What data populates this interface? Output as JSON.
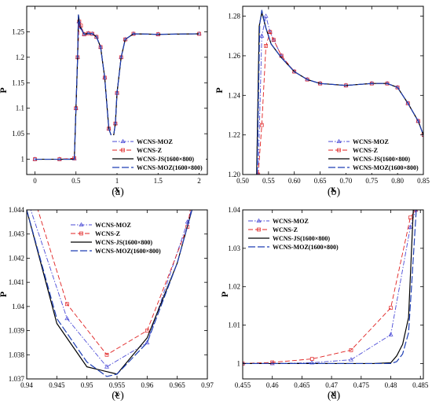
{
  "legend": {
    "items": [
      {
        "key": "moz",
        "label": "WCNS-MOZ"
      },
      {
        "key": "z",
        "label": "WCNS-Z"
      },
      {
        "key": "js",
        "label": "WCNS-JS(1600×800)"
      },
      {
        "key": "mozref",
        "label": "WCNS-MOZ(1600×800)"
      }
    ]
  },
  "colors": {
    "moz": "#4a4ad6",
    "z": "#e02020",
    "js": "#000000",
    "mozref": "#1e3fb4"
  },
  "chart_data": [
    {
      "id": "a",
      "type": "line",
      "panel_label": "(a)",
      "xlabel": "x",
      "ylabel": "P",
      "xlim": [
        -0.1,
        2.1
      ],
      "ylim": [
        0.97,
        1.3
      ],
      "xticks": [
        "0",
        "0.5",
        "1",
        "1.5",
        "2"
      ],
      "xtick_values": [
        0,
        0.5,
        1,
        1.5,
        2
      ],
      "yticks": [
        "1",
        "1.05",
        "1.1",
        "1.15",
        "1.2",
        "1.25"
      ],
      "ytick_values": [
        1,
        1.05,
        1.1,
        1.15,
        1.2,
        1.25
      ],
      "legend_position": "bottom-right",
      "series": [
        {
          "key": "moz",
          "x": [
            0,
            0.3,
            0.48,
            0.5,
            0.52,
            0.535,
            0.55,
            0.6,
            0.65,
            0.7,
            0.75,
            0.8,
            0.85,
            0.9,
            0.95,
            0.98,
            1.0,
            1.05,
            1.1,
            1.2,
            1.5,
            2.0
          ],
          "y": [
            1.0,
            1.0,
            1.001,
            1.1,
            1.2,
            1.27,
            1.258,
            1.245,
            1.247,
            1.246,
            1.24,
            1.22,
            1.16,
            1.06,
            1.037,
            1.07,
            1.13,
            1.2,
            1.235,
            1.246,
            1.245,
            1.246
          ]
        },
        {
          "key": "z",
          "x": [
            0,
            0.3,
            0.48,
            0.5,
            0.52,
            0.54,
            0.56,
            0.6,
            0.65,
            0.7,
            0.75,
            0.8,
            0.85,
            0.9,
            0.95,
            0.98,
            1.0,
            1.05,
            1.1,
            1.2,
            1.5,
            2.0
          ],
          "y": [
            1.0,
            1.0,
            1.002,
            1.1,
            1.2,
            1.27,
            1.262,
            1.245,
            1.247,
            1.246,
            1.24,
            1.22,
            1.16,
            1.06,
            1.038,
            1.07,
            1.13,
            1.2,
            1.235,
            1.246,
            1.245,
            1.246
          ]
        },
        {
          "key": "js",
          "x": [
            0,
            0.3,
            0.48,
            0.5,
            0.52,
            0.53,
            0.55,
            0.6,
            0.65,
            0.7,
            0.75,
            0.8,
            0.85,
            0.9,
            0.95,
            0.98,
            1.0,
            1.05,
            1.1,
            1.2,
            1.5,
            2.0
          ],
          "y": [
            1.0,
            1.0,
            1.0,
            1.1,
            1.2,
            1.283,
            1.26,
            1.245,
            1.247,
            1.246,
            1.24,
            1.22,
            1.16,
            1.06,
            1.037,
            1.07,
            1.13,
            1.2,
            1.235,
            1.246,
            1.245,
            1.246
          ]
        },
        {
          "key": "mozref",
          "x": [
            0,
            0.3,
            0.48,
            0.5,
            0.52,
            0.53,
            0.55,
            0.6,
            0.65,
            0.7,
            0.75,
            0.8,
            0.85,
            0.9,
            0.95,
            0.98,
            1.0,
            1.05,
            1.1,
            1.2,
            1.5,
            2.0
          ],
          "y": [
            1.0,
            1.0,
            1.0,
            1.1,
            1.2,
            1.283,
            1.26,
            1.245,
            1.247,
            1.246,
            1.24,
            1.22,
            1.16,
            1.06,
            1.037,
            1.07,
            1.13,
            1.2,
            1.235,
            1.246,
            1.245,
            1.246
          ]
        }
      ]
    },
    {
      "id": "b",
      "type": "line",
      "panel_label": "(b)",
      "xlabel": "x",
      "ylabel": "P",
      "xlim": [
        0.5,
        0.85
      ],
      "ylim": [
        1.2,
        1.285
      ],
      "xticks": [
        "0.50",
        "0.55",
        "0.60",
        "0.65",
        "0.70",
        "0.75",
        "0.80",
        "0.85"
      ],
      "xtick_values": [
        0.5,
        0.55,
        0.6,
        0.65,
        0.7,
        0.75,
        0.8,
        0.85
      ],
      "yticks": [
        "1.20",
        "1.22",
        "1.24",
        "1.26",
        "1.28"
      ],
      "ytick_values": [
        1.2,
        1.22,
        1.24,
        1.26,
        1.28
      ],
      "legend_position": "bottom-right",
      "series": [
        {
          "key": "moz",
          "x": [
            0.53,
            0.537,
            0.545,
            0.553,
            0.56,
            0.575,
            0.6,
            0.625,
            0.65,
            0.7,
            0.75,
            0.78,
            0.8,
            0.82,
            0.84,
            0.85
          ],
          "y": [
            1.2,
            1.27,
            1.28,
            1.272,
            1.268,
            1.26,
            1.252,
            1.248,
            1.246,
            1.245,
            1.246,
            1.246,
            1.244,
            1.236,
            1.227,
            1.22
          ]
        },
        {
          "key": "z",
          "x": [
            0.53,
            0.537,
            0.545,
            0.553,
            0.56,
            0.575,
            0.6,
            0.625,
            0.65,
            0.7,
            0.75,
            0.78,
            0.8,
            0.82,
            0.84,
            0.85
          ],
          "y": [
            1.2,
            1.225,
            1.265,
            1.272,
            1.268,
            1.26,
            1.252,
            1.248,
            1.246,
            1.245,
            1.246,
            1.246,
            1.244,
            1.236,
            1.227,
            1.22
          ]
        },
        {
          "key": "js",
          "x": [
            0.527,
            0.532,
            0.537,
            0.545,
            0.555,
            0.575,
            0.6,
            0.625,
            0.65,
            0.7,
            0.75,
            0.78,
            0.8,
            0.82,
            0.84,
            0.85
          ],
          "y": [
            1.2,
            1.275,
            1.282,
            1.274,
            1.266,
            1.259,
            1.252,
            1.248,
            1.246,
            1.245,
            1.246,
            1.246,
            1.244,
            1.236,
            1.227,
            1.22
          ]
        },
        {
          "key": "mozref",
          "x": [
            0.528,
            0.533,
            0.537,
            0.545,
            0.555,
            0.575,
            0.6,
            0.625,
            0.65,
            0.7,
            0.75,
            0.78,
            0.8,
            0.82,
            0.84,
            0.85
          ],
          "y": [
            1.2,
            1.276,
            1.283,
            1.274,
            1.266,
            1.259,
            1.252,
            1.248,
            1.246,
            1.245,
            1.246,
            1.246,
            1.244,
            1.236,
            1.227,
            1.22
          ]
        }
      ]
    },
    {
      "id": "c",
      "type": "line",
      "panel_label": "(c)",
      "xlabel": "x",
      "ylabel": "P",
      "xlim": [
        0.94,
        0.97
      ],
      "ylim": [
        1.037,
        1.044
      ],
      "xticks": [
        "0.94",
        "0.945",
        "0.95",
        "0.955",
        "0.96",
        "0.965",
        "0.97"
      ],
      "xtick_values": [
        0.94,
        0.945,
        0.95,
        0.955,
        0.96,
        0.965,
        0.97
      ],
      "yticks": [
        "1.037",
        "1.038",
        "1.039",
        "1.04",
        "1.041",
        "1.042",
        "1.043",
        "1.044"
      ],
      "ytick_values": [
        1.037,
        1.038,
        1.039,
        1.04,
        1.041,
        1.042,
        1.043,
        1.044
      ],
      "legend_position": "top-center",
      "series": [
        {
          "key": "moz",
          "x": [
            0.94,
            0.9467,
            0.9533,
            0.96,
            0.9667,
            0.968
          ],
          "y": [
            1.0445,
            1.0395,
            1.0375,
            1.0385,
            1.0435,
            1.0445
          ]
        },
        {
          "key": "z",
          "x": [
            0.94,
            0.9467,
            0.9533,
            0.96,
            0.9667,
            0.9675
          ],
          "y": [
            1.0455,
            1.0401,
            1.038,
            1.039,
            1.0433,
            1.0445
          ]
        },
        {
          "key": "js",
          "x": [
            0.94,
            0.945,
            0.95,
            0.955,
            0.96,
            0.965,
            0.968
          ],
          "y": [
            1.044,
            1.0393,
            1.0375,
            1.0372,
            1.0387,
            1.0418,
            1.0445
          ]
        },
        {
          "key": "mozref",
          "x": [
            0.94,
            0.945,
            0.95,
            0.9533,
            0.955,
            0.96,
            0.965,
            0.968
          ],
          "y": [
            1.044,
            1.0395,
            1.0377,
            1.0371,
            1.0372,
            1.0385,
            1.0418,
            1.0445
          ]
        }
      ]
    },
    {
      "id": "d",
      "type": "line",
      "panel_label": "(d)",
      "xlabel": "x",
      "ylabel": "P",
      "xlim": [
        0.455,
        0.4855
      ],
      "ylim": [
        0.996,
        1.04
      ],
      "xticks": [
        "0.455",
        "0.46",
        "0.465",
        "0.47",
        "0.475",
        "0.48",
        "0.485"
      ],
      "xtick_values": [
        0.455,
        0.46,
        0.465,
        0.47,
        0.475,
        0.48,
        0.485
      ],
      "yticks": [
        "1",
        "1.01",
        "1.02",
        "1.03",
        "1.04"
      ],
      "ytick_values": [
        1,
        1.01,
        1.02,
        1.03,
        1.04
      ],
      "legend_position": "top-left",
      "series": [
        {
          "key": "moz",
          "x": [
            0.455,
            0.46,
            0.4667,
            0.4733,
            0.48,
            0.4833,
            0.4842
          ],
          "y": [
            1.0,
            1.0,
            1.0002,
            1.001,
            1.0075,
            1.0355,
            1.04
          ]
        },
        {
          "key": "z",
          "x": [
            0.455,
            0.46,
            0.4667,
            0.4733,
            0.48,
            0.4833,
            0.4842
          ],
          "y": [
            1.0,
            1.0003,
            1.0012,
            1.0035,
            1.0145,
            1.038,
            1.04
          ]
        },
        {
          "key": "js",
          "x": [
            0.455,
            0.47,
            0.477,
            0.48,
            0.481,
            0.482,
            0.483,
            0.4838
          ],
          "y": [
            1.0,
            1.0,
            1.0,
            1.0002,
            1.002,
            1.005,
            1.012,
            1.04
          ]
        },
        {
          "key": "mozref",
          "x": [
            0.455,
            0.47,
            0.477,
            0.48,
            0.481,
            0.482,
            0.483,
            0.4835,
            0.4843
          ],
          "y": [
            1.0,
            1.0,
            1.0,
            1.0,
            1.0005,
            1.0025,
            1.008,
            1.02,
            1.04
          ]
        }
      ]
    }
  ]
}
